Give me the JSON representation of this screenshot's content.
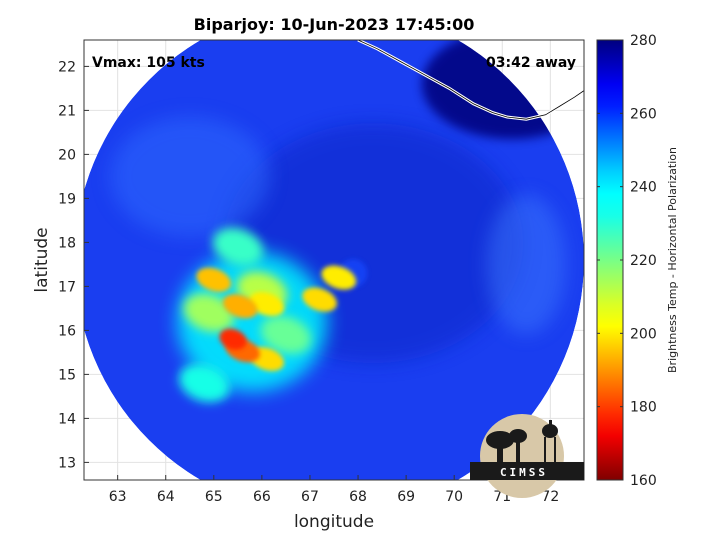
{
  "chart_data": {
    "type": "heatmap",
    "title": "Biparjoy: 10-Jun-2023 17:45:00",
    "xlabel": "longitude",
    "ylabel": "latitude",
    "xlim": [
      62.3,
      72.7
    ],
    "ylim": [
      12.6,
      22.6
    ],
    "xticks": [
      63,
      64,
      65,
      66,
      67,
      68,
      69,
      70,
      71,
      72
    ],
    "yticks": [
      13,
      14,
      15,
      16,
      17,
      18,
      19,
      20,
      21,
      22
    ],
    "grid": true,
    "colorbar": {
      "label": "Brightness Temp - Horizontal Polarization",
      "range": [
        160,
        280
      ],
      "ticks": [
        160,
        180,
        200,
        220,
        240,
        260,
        280
      ],
      "colormap": "jet"
    },
    "swath": {
      "center_lon": 67.4,
      "center_lat": 17.6,
      "radius_deg": 5.3
    },
    "storm_center": {
      "lon": 67.9,
      "lat": 17.3
    },
    "features": [
      {
        "lon": 65.4,
        "lat": 15.8,
        "temp": 178
      },
      {
        "lon": 65.6,
        "lat": 15.55,
        "temp": 185
      },
      {
        "lon": 66.1,
        "lat": 15.35,
        "temp": 198
      },
      {
        "lon": 65.0,
        "lat": 17.15,
        "temp": 195
      },
      {
        "lon": 65.55,
        "lat": 16.55,
        "temp": 193
      },
      {
        "lon": 66.1,
        "lat": 16.6,
        "temp": 200
      },
      {
        "lon": 67.2,
        "lat": 16.7,
        "temp": 198
      },
      {
        "lon": 67.6,
        "lat": 17.2,
        "temp": 200
      },
      {
        "lon": 66.0,
        "lat": 16.9,
        "temp": 212
      },
      {
        "lon": 64.9,
        "lat": 16.4,
        "temp": 215
      },
      {
        "lon": 65.5,
        "lat": 17.9,
        "temp": 228
      },
      {
        "lon": 64.8,
        "lat": 14.8,
        "temp": 232
      },
      {
        "lon": 66.5,
        "lat": 15.9,
        "temp": 222
      }
    ]
  },
  "annotations": {
    "vmax": "Vmax: 105 kts",
    "time_away": "03:42 away"
  },
  "logo": {
    "text": "CIMSS"
  },
  "colors": {
    "background_cold": "#00007a",
    "swath_base": "#1a3ef0",
    "coast": "#ffffff"
  }
}
